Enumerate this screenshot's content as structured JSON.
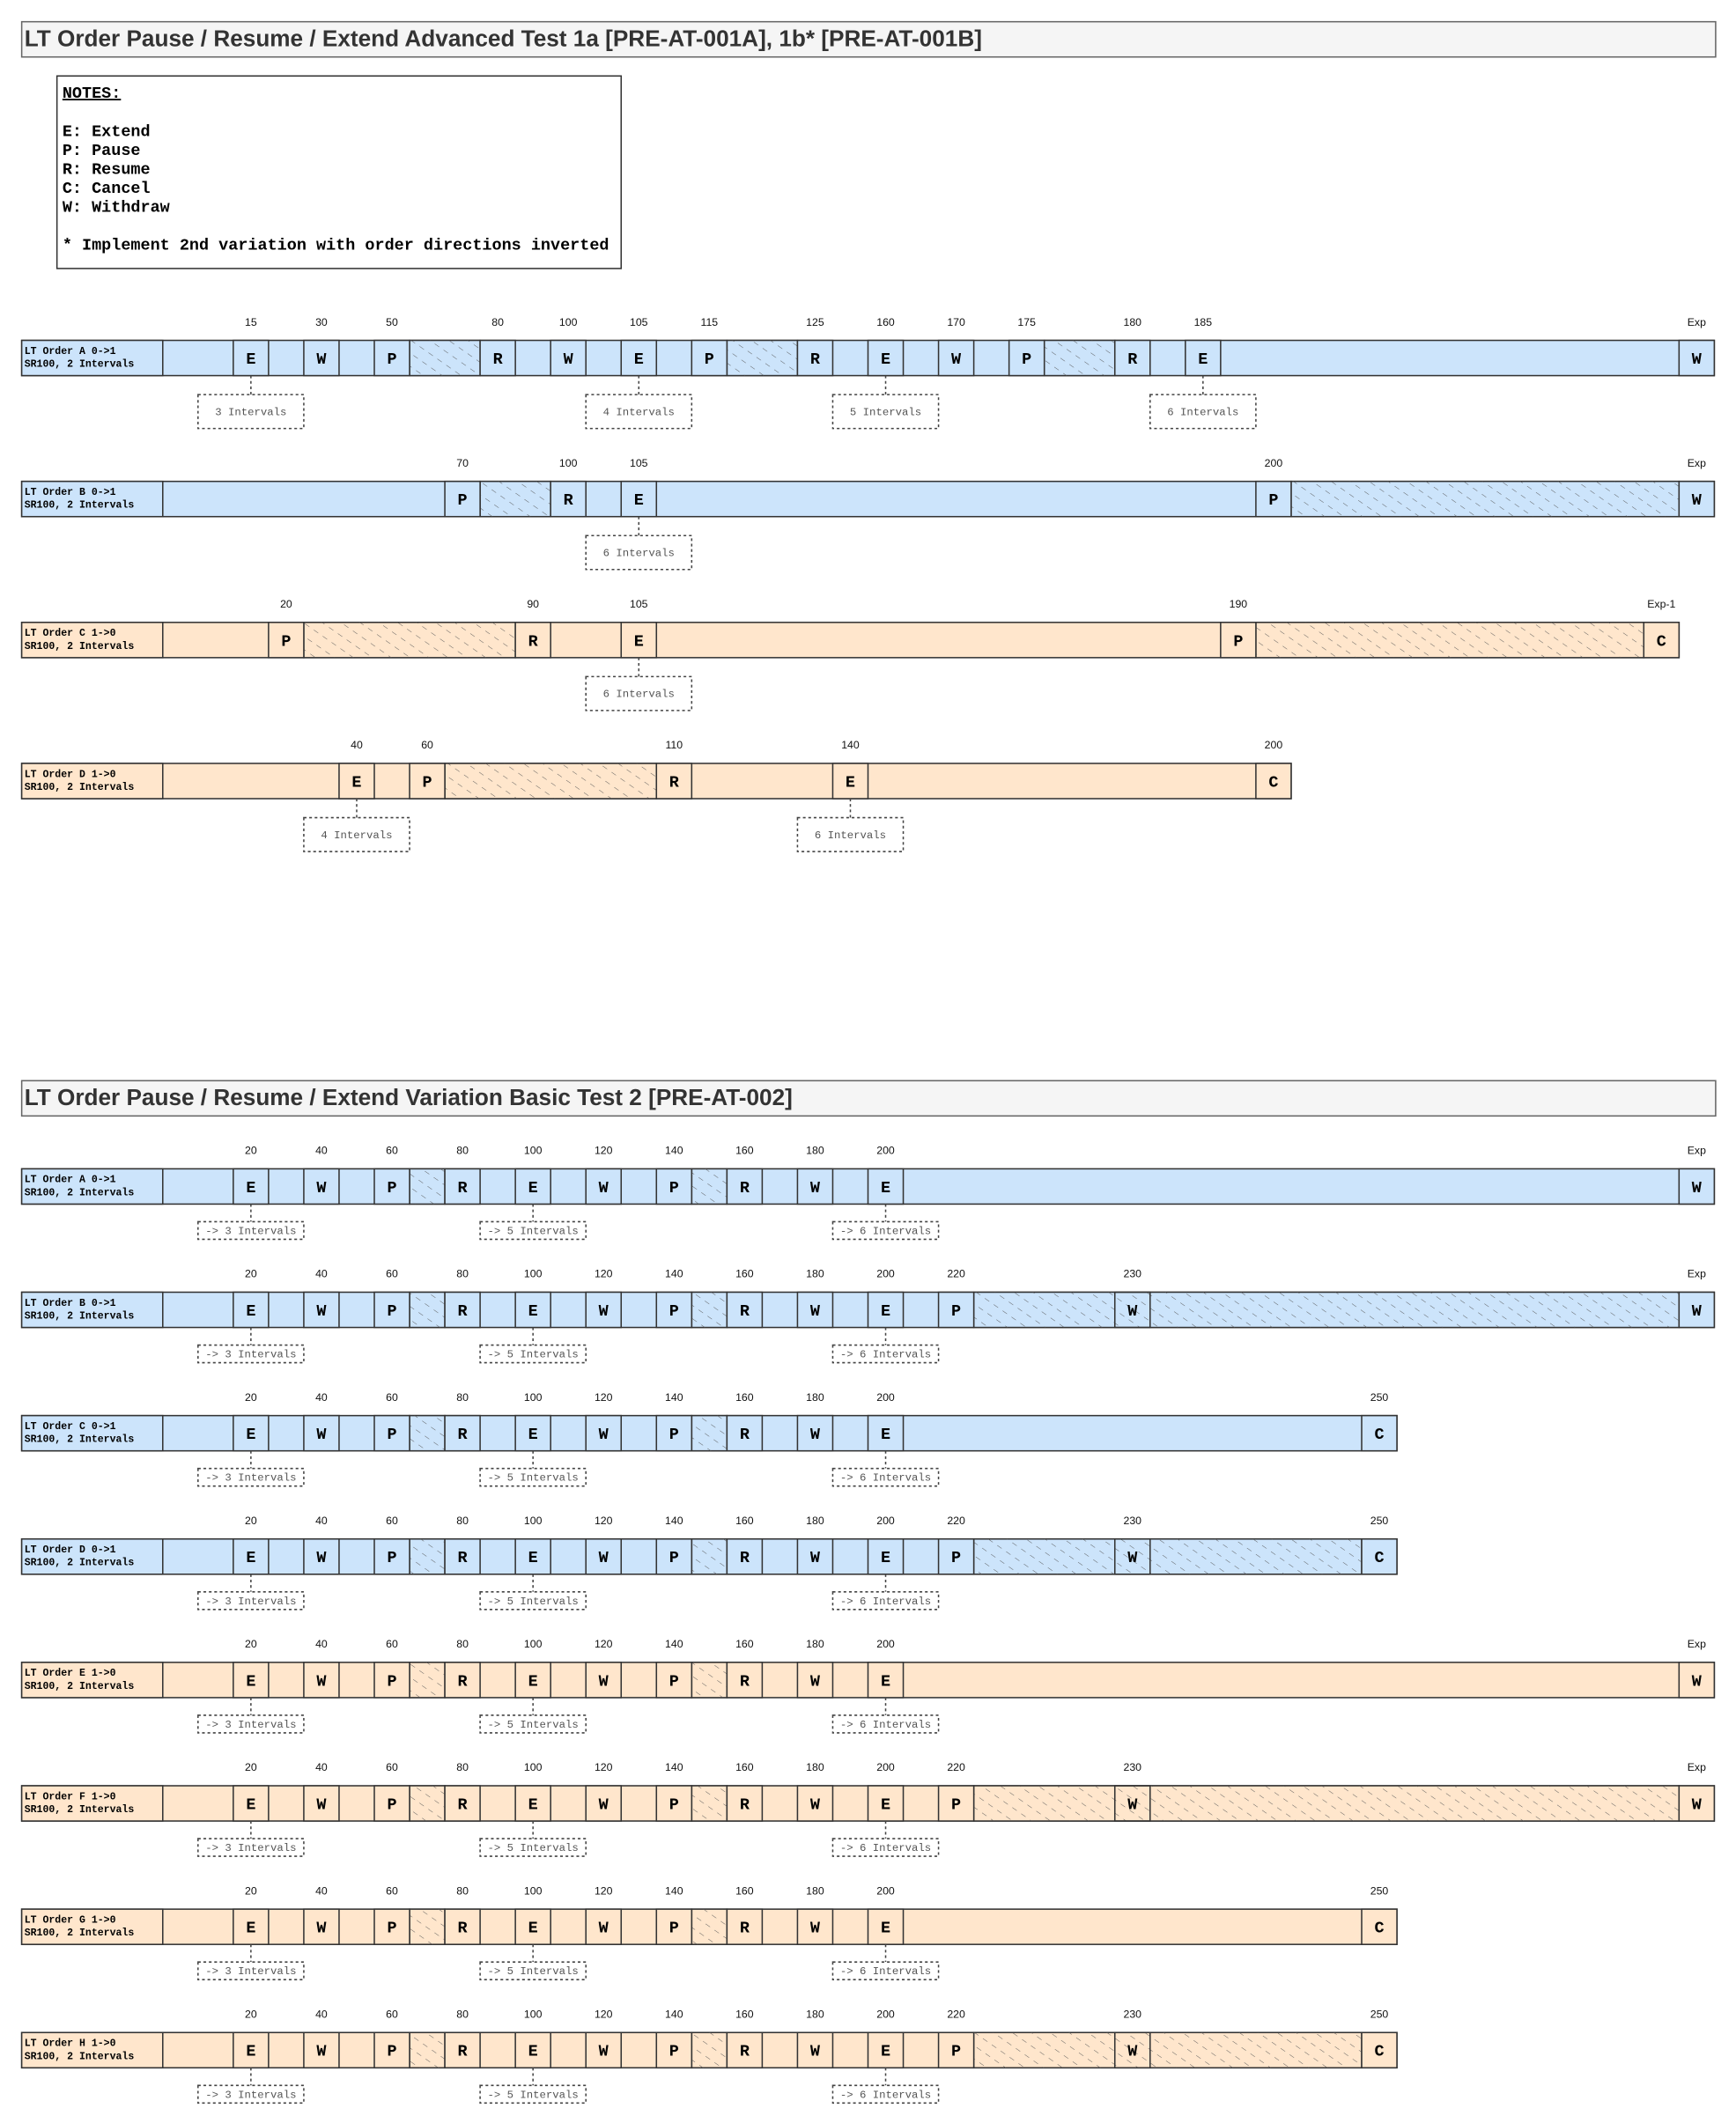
{
  "sections": [
    {
      "title": "LT Order Pause / Resume / Extend Advanced Test 1a [PRE-AT-001A], 1b* [PRE-AT-001B]",
      "notes": {
        "heading": "NOTES:",
        "lines": [
          "E: Extend",
          "P: Pause",
          "R: Resume",
          "C: Cancel",
          "W: Withdraw"
        ],
        "footnote": "* Implement 2nd variation with order directions inverted"
      },
      "rows": [
        {
          "label": [
            "LT Order A 0->1",
            "SR100, 2 Intervals"
          ],
          "color": "#cce4fb",
          "events": [
            {
              "letter": "E",
              "tick": "15"
            },
            {
              "letter": "W",
              "tick": "30"
            },
            {
              "letter": "P",
              "tick": "50"
            },
            {
              "letter": "R",
              "tick": "80"
            },
            {
              "letter": "W",
              "tick": "100"
            },
            {
              "letter": "E",
              "tick": "105"
            },
            {
              "letter": "P",
              "tick": "115"
            },
            {
              "letter": "R",
              "tick": "125"
            },
            {
              "letter": "E",
              "tick": "160"
            },
            {
              "letter": "W",
              "tick": "170"
            },
            {
              "letter": "P",
              "tick": "175"
            },
            {
              "letter": "R",
              "tick": "180"
            },
            {
              "letter": "E",
              "tick": "185"
            },
            {
              "letter": "W",
              "tick": "Exp"
            }
          ],
          "notes": [
            "3 Intervals",
            "4 Intervals",
            "5 Intervals",
            "6 Intervals"
          ]
        },
        {
          "label": [
            "LT Order B 0->1",
            "SR100, 2 Intervals"
          ],
          "color": "#cce4fb",
          "events": [
            {
              "letter": "P",
              "tick": "70"
            },
            {
              "letter": "R",
              "tick": "100"
            },
            {
              "letter": "E",
              "tick": "105"
            },
            {
              "letter": "P",
              "tick": "200"
            },
            {
              "letter": "W",
              "tick": "Exp"
            }
          ],
          "notes": [
            "6 Intervals"
          ]
        },
        {
          "label": [
            "LT Order C 1->0",
            "SR100, 2 Intervals"
          ],
          "color": "#ffe6cc",
          "events": [
            {
              "letter": "P",
              "tick": "20"
            },
            {
              "letter": "R",
              "tick": "90"
            },
            {
              "letter": "E",
              "tick": "105"
            },
            {
              "letter": "P",
              "tick": "190"
            },
            {
              "letter": "C",
              "tick": "Exp-1"
            }
          ],
          "notes": [
            "6 Intervals"
          ]
        },
        {
          "label": [
            "LT Order D 1->0",
            "SR100, 2 Intervals"
          ],
          "color": "#ffe6cc",
          "events": [
            {
              "letter": "E",
              "tick": "40"
            },
            {
              "letter": "P",
              "tick": "60"
            },
            {
              "letter": "R",
              "tick": "110"
            },
            {
              "letter": "E",
              "tick": "140"
            },
            {
              "letter": "C",
              "tick": "200"
            }
          ],
          "notes": [
            "4 Intervals",
            "6 Intervals"
          ]
        }
      ]
    },
    {
      "title": "LT Order Pause / Resume / Extend Variation Basic Test 2 [PRE-AT-002]",
      "rows": [
        {
          "label": [
            "LT Order A 0->1",
            "SR100, 2 Intervals"
          ],
          "color": "#cce4fb",
          "events": [
            {
              "letter": "E",
              "tick": "20"
            },
            {
              "letter": "W",
              "tick": "40"
            },
            {
              "letter": "P",
              "tick": "60"
            },
            {
              "letter": "R",
              "tick": "80"
            },
            {
              "letter": "E",
              "tick": "100"
            },
            {
              "letter": "W",
              "tick": "120"
            },
            {
              "letter": "P",
              "tick": "140"
            },
            {
              "letter": "R",
              "tick": "160"
            },
            {
              "letter": "W",
              "tick": "180"
            },
            {
              "letter": "E",
              "tick": "200"
            },
            {
              "letter": "W",
              "tick": "Exp"
            }
          ],
          "notes": [
            "-> 3 Intervals",
            "-> 5 Intervals",
            "-> 6 Intervals"
          ]
        },
        {
          "label": [
            "LT Order B 0->1",
            "SR100, 2 Intervals"
          ],
          "color": "#cce4fb",
          "events": [
            {
              "letter": "E",
              "tick": "20"
            },
            {
              "letter": "W",
              "tick": "40"
            },
            {
              "letter": "P",
              "tick": "60"
            },
            {
              "letter": "R",
              "tick": "80"
            },
            {
              "letter": "E",
              "tick": "100"
            },
            {
              "letter": "W",
              "tick": "120"
            },
            {
              "letter": "P",
              "tick": "140"
            },
            {
              "letter": "R",
              "tick": "160"
            },
            {
              "letter": "W",
              "tick": "180"
            },
            {
              "letter": "E",
              "tick": "200"
            },
            {
              "letter": "P",
              "tick": "220"
            },
            {
              "letter": "W",
              "tick": "230"
            },
            {
              "letter": "W",
              "tick": "Exp"
            }
          ],
          "notes": [
            "-> 3 Intervals",
            "-> 5 Intervals",
            "-> 6 Intervals"
          ]
        },
        {
          "label": [
            "LT Order C 0->1",
            "SR100, 2 Intervals"
          ],
          "color": "#cce4fb",
          "events": [
            {
              "letter": "E",
              "tick": "20"
            },
            {
              "letter": "W",
              "tick": "40"
            },
            {
              "letter": "P",
              "tick": "60"
            },
            {
              "letter": "R",
              "tick": "80"
            },
            {
              "letter": "E",
              "tick": "100"
            },
            {
              "letter": "W",
              "tick": "120"
            },
            {
              "letter": "P",
              "tick": "140"
            },
            {
              "letter": "R",
              "tick": "160"
            },
            {
              "letter": "W",
              "tick": "180"
            },
            {
              "letter": "E",
              "tick": "200"
            },
            {
              "letter": "C",
              "tick": "250"
            }
          ],
          "notes": [
            "-> 3 Intervals",
            "-> 5 Intervals",
            "-> 6 Intervals"
          ]
        },
        {
          "label": [
            "LT Order D 0->1",
            "SR100, 2 Intervals"
          ],
          "color": "#cce4fb",
          "events": [
            {
              "letter": "E",
              "tick": "20"
            },
            {
              "letter": "W",
              "tick": "40"
            },
            {
              "letter": "P",
              "tick": "60"
            },
            {
              "letter": "R",
              "tick": "80"
            },
            {
              "letter": "E",
              "tick": "100"
            },
            {
              "letter": "W",
              "tick": "120"
            },
            {
              "letter": "P",
              "tick": "140"
            },
            {
              "letter": "R",
              "tick": "160"
            },
            {
              "letter": "W",
              "tick": "180"
            },
            {
              "letter": "E",
              "tick": "200"
            },
            {
              "letter": "P",
              "tick": "220"
            },
            {
              "letter": "W",
              "tick": "230"
            },
            {
              "letter": "C",
              "tick": "250"
            }
          ],
          "notes": [
            "-> 3 Intervals",
            "-> 5 Intervals",
            "-> 6 Intervals"
          ]
        },
        {
          "label": [
            "LT Order E 1->0",
            "SR100, 2 Intervals"
          ],
          "color": "#ffe6cc",
          "events": [
            {
              "letter": "E",
              "tick": "20"
            },
            {
              "letter": "W",
              "tick": "40"
            },
            {
              "letter": "P",
              "tick": "60"
            },
            {
              "letter": "R",
              "tick": "80"
            },
            {
              "letter": "E",
              "tick": "100"
            },
            {
              "letter": "W",
              "tick": "120"
            },
            {
              "letter": "P",
              "tick": "140"
            },
            {
              "letter": "R",
              "tick": "160"
            },
            {
              "letter": "W",
              "tick": "180"
            },
            {
              "letter": "E",
              "tick": "200"
            },
            {
              "letter": "W",
              "tick": "Exp"
            }
          ],
          "notes": [
            "-> 3 Intervals",
            "-> 5 Intervals",
            "-> 6 Intervals"
          ]
        },
        {
          "label": [
            "LT Order F 1->0",
            "SR100, 2 Intervals"
          ],
          "color": "#ffe6cc",
          "events": [
            {
              "letter": "E",
              "tick": "20"
            },
            {
              "letter": "W",
              "tick": "40"
            },
            {
              "letter": "P",
              "tick": "60"
            },
            {
              "letter": "R",
              "tick": "80"
            },
            {
              "letter": "E",
              "tick": "100"
            },
            {
              "letter": "W",
              "tick": "120"
            },
            {
              "letter": "P",
              "tick": "140"
            },
            {
              "letter": "R",
              "tick": "160"
            },
            {
              "letter": "W",
              "tick": "180"
            },
            {
              "letter": "E",
              "tick": "200"
            },
            {
              "letter": "P",
              "tick": "220"
            },
            {
              "letter": "W",
              "tick": "230"
            },
            {
              "letter": "W",
              "tick": "Exp"
            }
          ],
          "notes": [
            "-> 3 Intervals",
            "-> 5 Intervals",
            "-> 6 Intervals"
          ]
        },
        {
          "label": [
            "LT Order G 1->0",
            "SR100, 2 Intervals"
          ],
          "color": "#ffe6cc",
          "events": [
            {
              "letter": "E",
              "tick": "20"
            },
            {
              "letter": "W",
              "tick": "40"
            },
            {
              "letter": "P",
              "tick": "60"
            },
            {
              "letter": "R",
              "tick": "80"
            },
            {
              "letter": "E",
              "tick": "100"
            },
            {
              "letter": "W",
              "tick": "120"
            },
            {
              "letter": "P",
              "tick": "140"
            },
            {
              "letter": "R",
              "tick": "160"
            },
            {
              "letter": "W",
              "tick": "180"
            },
            {
              "letter": "E",
              "tick": "200"
            },
            {
              "letter": "C",
              "tick": "250"
            }
          ],
          "notes": [
            "-> 3 Intervals",
            "-> 5 Intervals",
            "-> 6 Intervals"
          ]
        },
        {
          "label": [
            "LT Order H 1->0",
            "SR100, 2 Intervals"
          ],
          "color": "#ffe6cc",
          "events": [
            {
              "letter": "E",
              "tick": "20"
            },
            {
              "letter": "W",
              "tick": "40"
            },
            {
              "letter": "P",
              "tick": "60"
            },
            {
              "letter": "R",
              "tick": "80"
            },
            {
              "letter": "E",
              "tick": "100"
            },
            {
              "letter": "W",
              "tick": "120"
            },
            {
              "letter": "P",
              "tick": "140"
            },
            {
              "letter": "R",
              "tick": "160"
            },
            {
              "letter": "W",
              "tick": "180"
            },
            {
              "letter": "E",
              "tick": "200"
            },
            {
              "letter": "P",
              "tick": "220"
            },
            {
              "letter": "W",
              "tick": "230"
            },
            {
              "letter": "C",
              "tick": "250"
            }
          ],
          "notes": [
            "-> 3 Intervals",
            "-> 5 Intervals",
            "-> 6 Intervals"
          ]
        }
      ]
    }
  ]
}
